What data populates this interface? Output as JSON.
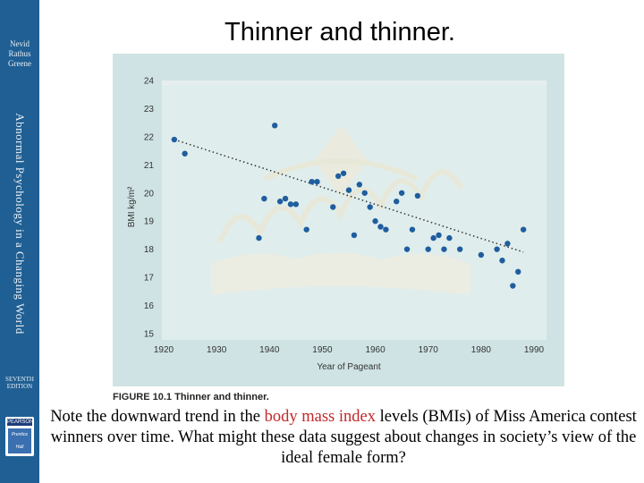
{
  "slide": {
    "title": "Thinner and thinner.",
    "caption_label": "FIGURE 10.1",
    "caption_text": "Thinner and thinner.",
    "note_before": "Note the downward trend in the ",
    "note_highlight": "body mass index",
    "note_after": " levels (BMIs) of Miss America contest winners over time. What might these data suggest about changes in society’s view of the ideal female form?"
  },
  "sidebar": {
    "authors": [
      "Nevid",
      "Rathus",
      "Greene"
    ],
    "book_title": "Abnormal Psychology in a Changing World",
    "edition": [
      "SEVENTH",
      "EDITION"
    ],
    "publisher": [
      "PEARSON",
      "Prentice Hall"
    ]
  },
  "colors": {
    "spine": "#1f5f93",
    "figure_bg": "#cfe3e4",
    "points": "#1f5e9e",
    "highlight": "#c0282b"
  },
  "chart_data": {
    "type": "scatter",
    "xlabel": "Year of Pageant",
    "ylabel": "BMI kg/m²",
    "xlim": [
      1920,
      1990
    ],
    "ylim": [
      15,
      24
    ],
    "xticks": [
      1920,
      1930,
      1940,
      1950,
      1960,
      1970,
      1980,
      1990
    ],
    "yticks": [
      15,
      16,
      17,
      18,
      19,
      20,
      21,
      22,
      23,
      24
    ],
    "grid": false,
    "trendline": {
      "x": [
        1922,
        1988
      ],
      "y": [
        21.9,
        17.9
      ]
    },
    "points": [
      {
        "x": 1922,
        "y": 21.9
      },
      {
        "x": 1924,
        "y": 21.4
      },
      {
        "x": 1938,
        "y": 18.4
      },
      {
        "x": 1939,
        "y": 19.8
      },
      {
        "x": 1941,
        "y": 22.4
      },
      {
        "x": 1942,
        "y": 19.7
      },
      {
        "x": 1943,
        "y": 19.8
      },
      {
        "x": 1944,
        "y": 19.6
      },
      {
        "x": 1945,
        "y": 19.6
      },
      {
        "x": 1947,
        "y": 18.7
      },
      {
        "x": 1948,
        "y": 20.4
      },
      {
        "x": 1949,
        "y": 20.4
      },
      {
        "x": 1952,
        "y": 19.5
      },
      {
        "x": 1953,
        "y": 20.6
      },
      {
        "x": 1954,
        "y": 20.7
      },
      {
        "x": 1955,
        "y": 20.1
      },
      {
        "x": 1956,
        "y": 18.5
      },
      {
        "x": 1957,
        "y": 20.3
      },
      {
        "x": 1958,
        "y": 20.0
      },
      {
        "x": 1959,
        "y": 19.5
      },
      {
        "x": 1960,
        "y": 19.0
      },
      {
        "x": 1961,
        "y": 18.8
      },
      {
        "x": 1962,
        "y": 18.7
      },
      {
        "x": 1964,
        "y": 19.7
      },
      {
        "x": 1965,
        "y": 20.0
      },
      {
        "x": 1966,
        "y": 18.0
      },
      {
        "x": 1967,
        "y": 18.7
      },
      {
        "x": 1968,
        "y": 19.9
      },
      {
        "x": 1970,
        "y": 18.0
      },
      {
        "x": 1971,
        "y": 18.4
      },
      {
        "x": 1972,
        "y": 18.5
      },
      {
        "x": 1973,
        "y": 18.0
      },
      {
        "x": 1974,
        "y": 18.4
      },
      {
        "x": 1976,
        "y": 18.0
      },
      {
        "x": 1980,
        "y": 17.8
      },
      {
        "x": 1983,
        "y": 18.0
      },
      {
        "x": 1984,
        "y": 17.6
      },
      {
        "x": 1985,
        "y": 18.2
      },
      {
        "x": 1986,
        "y": 16.7
      },
      {
        "x": 1987,
        "y": 17.2
      },
      {
        "x": 1988,
        "y": 18.7
      }
    ]
  }
}
